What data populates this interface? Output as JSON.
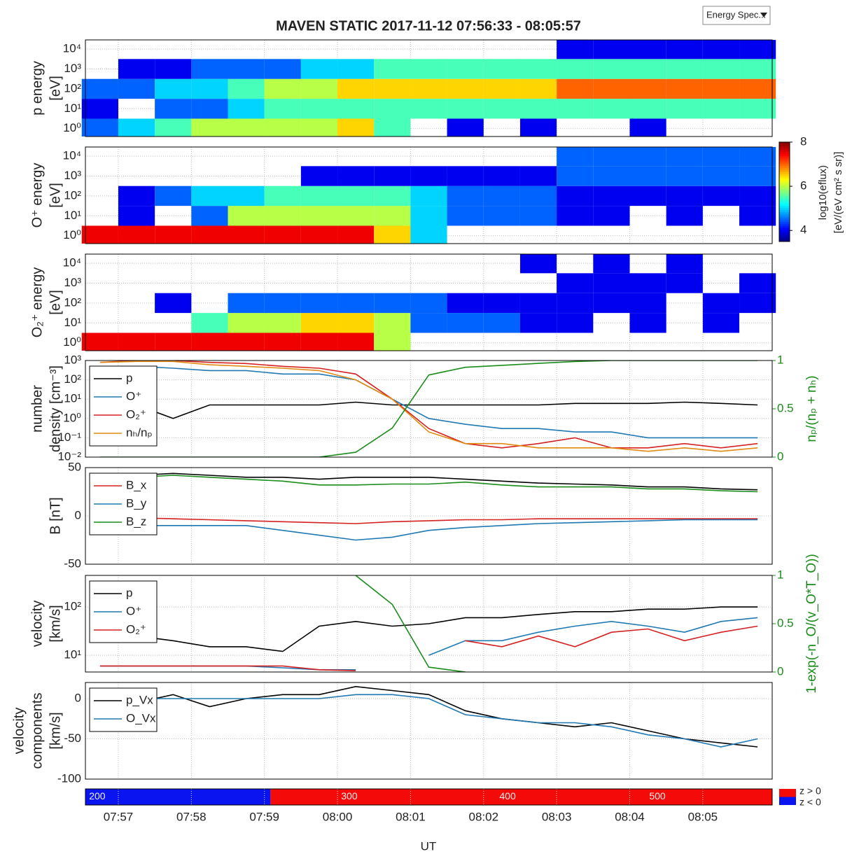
{
  "title": "MAVEN STATIC 2017-11-12 07:56:33 - 08:05:57",
  "controls": {
    "dropdown": "Energy Spec..."
  },
  "colorbar": {
    "clim": [
      3.5,
      8
    ],
    "ticks": [
      4,
      6,
      8
    ],
    "label": [
      "log10(eflux)",
      "[eV/(eV cm² s sr)]"
    ]
  },
  "chart_data": [
    {
      "type": "heatmap",
      "ylabel": [
        "p energy",
        "[eV]"
      ],
      "xlim": [
        "07:56:33",
        "08:05:57"
      ],
      "ylog": true,
      "ylim": [
        0.4,
        29000
      ],
      "yticks": [
        {
          "value": 1,
          "label": "10⁰"
        },
        {
          "value": 10,
          "label": "10¹"
        },
        {
          "value": 100,
          "label": "10²"
        },
        {
          "value": 1000,
          "label": "10³"
        },
        {
          "value": 10000,
          "label": "10⁴"
        }
      ],
      "x": [
        "07:56:45",
        "07:57:15",
        "07:57:45",
        "07:58:15",
        "07:58:45",
        "07:59:15",
        "07:59:45",
        "08:00:15",
        "08:00:45",
        "08:01:15",
        "08:01:45",
        "08:02:15",
        "08:02:45",
        "08:03:15",
        "08:03:45",
        "08:04:15",
        "08:04:45",
        "08:05:15",
        "08:05:45"
      ],
      "energies": [
        1,
        10,
        100,
        1000,
        10000
      ],
      "z": [
        [
          4.5,
          5,
          5.5,
          6,
          6,
          6,
          6,
          6.5,
          5.5,
          null,
          4,
          null,
          4,
          null,
          null,
          4,
          null,
          null,
          null
        ],
        [
          4,
          null,
          4.5,
          4.5,
          5,
          5.5,
          5.5,
          5.5,
          5.5,
          5.5,
          5.5,
          5.5,
          5.5,
          5.5,
          5.5,
          5.5,
          5.5,
          5.5,
          5.5
        ],
        [
          4.5,
          4.5,
          5,
          5,
          5.5,
          6,
          6,
          6.5,
          6.5,
          6.5,
          6.5,
          6.5,
          6.5,
          7,
          7,
          7,
          7,
          7,
          7
        ],
        [
          null,
          4,
          4,
          4.5,
          4.5,
          4.5,
          5,
          5,
          5.5,
          5.5,
          5.5,
          5.5,
          5.5,
          5.5,
          5.5,
          5.5,
          5.5,
          5.5,
          5.5
        ],
        [
          null,
          null,
          null,
          null,
          null,
          null,
          null,
          null,
          null,
          null,
          null,
          null,
          null,
          4,
          4,
          4,
          4,
          4,
          4
        ]
      ]
    },
    {
      "type": "heatmap",
      "ylabel": [
        "O⁺ energy",
        "[eV]"
      ],
      "xlim": [
        "07:56:33",
        "08:05:57"
      ],
      "ylog": true,
      "ylim": [
        0.4,
        29000
      ],
      "yticks": [
        {
          "value": 1,
          "label": "10⁰"
        },
        {
          "value": 10,
          "label": "10¹"
        },
        {
          "value": 100,
          "label": "10²"
        },
        {
          "value": 1000,
          "label": "10³"
        },
        {
          "value": 10000,
          "label": "10⁴"
        }
      ],
      "x": [
        "07:56:45",
        "07:57:15",
        "07:57:45",
        "07:58:15",
        "07:58:45",
        "07:59:15",
        "07:59:45",
        "08:00:15",
        "08:00:45",
        "08:01:15",
        "08:01:45",
        "08:02:15",
        "08:02:45",
        "08:03:15",
        "08:03:45",
        "08:04:15",
        "08:04:45",
        "08:05:15",
        "08:05:45"
      ],
      "energies": [
        1,
        10,
        100,
        1000,
        10000
      ],
      "z": [
        [
          7.5,
          7.5,
          7.5,
          7.5,
          7.5,
          7.5,
          7.5,
          7.5,
          6.5,
          5,
          null,
          null,
          null,
          null,
          null,
          null,
          null,
          null,
          null
        ],
        [
          null,
          4,
          null,
          4.5,
          6,
          6,
          6,
          6,
          6,
          5,
          4.5,
          4.5,
          4.5,
          4,
          4,
          null,
          4,
          null,
          4
        ],
        [
          null,
          4,
          4.5,
          5,
          5,
          5.5,
          5.5,
          5.5,
          5.5,
          5,
          4.5,
          4.5,
          4.5,
          4,
          4,
          4,
          4,
          4,
          4
        ],
        [
          null,
          null,
          null,
          null,
          null,
          null,
          4,
          4,
          4,
          4,
          4,
          4,
          4,
          4.5,
          4.5,
          4.5,
          4.5,
          4.5,
          4.5
        ],
        [
          null,
          null,
          null,
          null,
          null,
          null,
          null,
          null,
          null,
          null,
          null,
          null,
          null,
          4.5,
          4.5,
          4.5,
          4.5,
          4.5,
          4.5
        ]
      ]
    },
    {
      "type": "heatmap",
      "ylabel": [
        "O₂⁺ energy",
        "[eV]"
      ],
      "xlim": [
        "07:56:33",
        "08:05:57"
      ],
      "ylog": true,
      "ylim": [
        0.4,
        29000
      ],
      "yticks": [
        {
          "value": 1,
          "label": "10⁰"
        },
        {
          "value": 10,
          "label": "10¹"
        },
        {
          "value": 100,
          "label": "10²"
        },
        {
          "value": 1000,
          "label": "10³"
        },
        {
          "value": 10000,
          "label": "10⁴"
        }
      ],
      "x": [
        "07:56:45",
        "07:57:15",
        "07:57:45",
        "07:58:15",
        "07:58:45",
        "07:59:15",
        "07:59:45",
        "08:00:15",
        "08:00:45",
        "08:01:15",
        "08:01:45",
        "08:02:15",
        "08:02:45",
        "08:03:15",
        "08:03:45",
        "08:04:15",
        "08:04:45",
        "08:05:15",
        "08:05:45"
      ],
      "energies": [
        1,
        10,
        100,
        1000,
        10000
      ],
      "z": [
        [
          7.5,
          7.5,
          7.5,
          7.5,
          7.5,
          7.5,
          7.5,
          7.5,
          6,
          null,
          null,
          null,
          null,
          null,
          null,
          null,
          null,
          null,
          null
        ],
        [
          null,
          null,
          null,
          5.5,
          6,
          6,
          6.5,
          6.5,
          6,
          4.5,
          4.5,
          4.5,
          4,
          4,
          null,
          4,
          null,
          4,
          null
        ],
        [
          null,
          null,
          4,
          null,
          4.5,
          4.5,
          4.5,
          4.5,
          4.5,
          4.5,
          4,
          4,
          4,
          4,
          4,
          4,
          null,
          4,
          4
        ],
        [
          null,
          null,
          null,
          null,
          null,
          null,
          null,
          null,
          null,
          null,
          null,
          null,
          null,
          4,
          4,
          4,
          4,
          null,
          4
        ],
        [
          null,
          null,
          null,
          null,
          null,
          null,
          null,
          null,
          null,
          null,
          null,
          null,
          4,
          null,
          4,
          null,
          4,
          null,
          null
        ]
      ]
    },
    {
      "type": "line",
      "ylabel": [
        "number",
        "density [cm⁻³]"
      ],
      "y2label": "nₚ/(nₚ + nₕ)",
      "xlim": [
        "07:56:33",
        "08:05:57"
      ],
      "ylog": true,
      "ylim": [
        0.01,
        1000
      ],
      "yticks": [
        {
          "value": 0.01,
          "label": "10⁻²"
        },
        {
          "value": 0.1,
          "label": "10⁻¹"
        },
        {
          "value": 1,
          "label": "10⁰"
        },
        {
          "value": 10,
          "label": "10¹"
        },
        {
          "value": 100,
          "label": "10²"
        },
        {
          "value": 1000,
          "label": "10³"
        }
      ],
      "y2lim": [
        0,
        1
      ],
      "y2ticks": [
        0,
        0.5,
        1
      ],
      "y2color": "#1a8c1a",
      "x": [
        "07:56:45",
        "07:57:15",
        "07:57:45",
        "07:58:15",
        "07:58:45",
        "07:59:15",
        "07:59:45",
        "08:00:15",
        "08:00:45",
        "08:01:15",
        "08:01:45",
        "08:02:15",
        "08:02:45",
        "08:03:15",
        "08:03:45",
        "08:04:15",
        "08:04:45",
        "08:05:15",
        "08:05:45"
      ],
      "series": [
        {
          "name": "p",
          "color": "#000000",
          "values": [
            3,
            5,
            1,
            5,
            5,
            5,
            5,
            7,
            5,
            5,
            5,
            5,
            5,
            6,
            6,
            6,
            7,
            6,
            5
          ]
        },
        {
          "name": "O⁺",
          "color": "#1f78b4",
          "values": [
            500,
            500,
            400,
            300,
            300,
            200,
            200,
            100,
            10,
            1,
            0.5,
            0.3,
            0.3,
            0.2,
            0.2,
            0.1,
            0.1,
            0.1,
            0.1
          ]
        },
        {
          "name": "O₂⁺",
          "color": "#d62020",
          "values": [
            800,
            1000,
            1000,
            800,
            700,
            500,
            400,
            200,
            10,
            0.3,
            0.05,
            0.03,
            0.05,
            0.1,
            0.03,
            0.03,
            0.05,
            0.03,
            0.05
          ]
        },
        {
          "name": "nₕ/nₚ",
          "color": "#e08a10",
          "values": [
            800,
            900,
            900,
            600,
            500,
            400,
            300,
            100,
            10,
            0.2,
            0.05,
            0.05,
            0.03,
            0.03,
            0.03,
            0.02,
            0.03,
            0.02,
            0.03
          ]
        },
        {
          "color": "#1a8c1a",
          "axis": "y2",
          "values": [
            0,
            0,
            0,
            0,
            0,
            0,
            0,
            0.05,
            0.3,
            0.85,
            0.93,
            0.95,
            0.97,
            0.99,
            1,
            1,
            1,
            1,
            1
          ]
        }
      ]
    },
    {
      "type": "line",
      "ylabel": [
        "B [nT]"
      ],
      "xlim": [
        "07:56:33",
        "08:05:57"
      ],
      "ylim": [
        -50,
        50
      ],
      "yticks": [
        -50,
        0,
        50
      ],
      "x": [
        "07:56:45",
        "07:57:15",
        "07:57:45",
        "07:58:15",
        "07:58:45",
        "07:59:15",
        "07:59:45",
        "08:00:15",
        "08:00:45",
        "08:01:15",
        "08:01:45",
        "08:02:15",
        "08:02:45",
        "08:03:15",
        "08:03:45",
        "08:04:15",
        "08:04:45",
        "08:05:15",
        "08:05:45"
      ],
      "series": [
        {
          "color": "#000000",
          "values": [
            40,
            42,
            44,
            42,
            40,
            40,
            38,
            40,
            40,
            40,
            38,
            36,
            34,
            33,
            32,
            30,
            30,
            28,
            27
          ]
        },
        {
          "name": "B_x",
          "color": "#d62020",
          "values": [
            -1,
            -2,
            -3,
            -4,
            -5,
            -6,
            -7,
            -8,
            -6,
            -5,
            -4,
            -4,
            -3,
            -3,
            -3,
            -3,
            -3,
            -3,
            -3
          ]
        },
        {
          "name": "B_y",
          "color": "#1f78b4",
          "values": [
            -8,
            -10,
            -10,
            -10,
            -10,
            -15,
            -20,
            -25,
            -22,
            -15,
            -12,
            -10,
            -8,
            -7,
            -6,
            -5,
            -4,
            -4,
            -4
          ]
        },
        {
          "name": "B_z",
          "color": "#1a8c1a",
          "values": [
            38,
            40,
            42,
            40,
            38,
            36,
            32,
            32,
            33,
            33,
            35,
            32,
            30,
            30,
            30,
            28,
            28,
            26,
            25
          ]
        }
      ]
    },
    {
      "type": "line",
      "ylabel": [
        "velocity",
        "[km/s]"
      ],
      "y2label": "1-exp(-n_O/(v_O*T_O))",
      "xlim": [
        "07:56:33",
        "08:05:57"
      ],
      "ylog": true,
      "ylim": [
        4.5,
        450
      ],
      "yticks": [
        {
          "value": 10,
          "label": "10¹"
        },
        {
          "value": 100,
          "label": "10²"
        }
      ],
      "y2lim": [
        0,
        1
      ],
      "y2ticks": [
        0,
        0.5,
        1
      ],
      "y2color": "#1a8c1a",
      "x": [
        "07:56:45",
        "07:57:15",
        "07:57:45",
        "07:58:15",
        "07:58:45",
        "07:59:15",
        "07:59:45",
        "08:00:15",
        "08:00:45",
        "08:01:15",
        "08:01:45",
        "08:02:15",
        "08:02:45",
        "08:03:15",
        "08:03:45",
        "08:04:15",
        "08:04:45",
        "08:05:15",
        "08:05:45"
      ],
      "series": [
        {
          "name": "p",
          "color": "#000000",
          "values": [
            30,
            25,
            20,
            15,
            15,
            12,
            40,
            50,
            40,
            45,
            60,
            60,
            70,
            80,
            80,
            90,
            90,
            100,
            100
          ]
        },
        {
          "name": "O⁺",
          "color": "#1f78b4",
          "values": [
            6,
            6,
            6,
            6,
            6,
            5.5,
            5,
            5,
            null,
            10,
            20,
            20,
            30,
            40,
            50,
            40,
            30,
            50,
            60
          ]
        },
        {
          "name": "O₂⁺",
          "color": "#d62020",
          "values": [
            6,
            6,
            6,
            6,
            6,
            6,
            5,
            4.8,
            null,
            null,
            20,
            15,
            25,
            15,
            30,
            35,
            20,
            30,
            40
          ]
        },
        {
          "color": "#1a8c1a",
          "axis": "y2",
          "values": [
            null,
            null,
            null,
            null,
            null,
            null,
            null,
            1,
            0.7,
            0.05,
            0,
            null,
            null,
            null,
            null,
            null,
            null,
            null,
            null
          ]
        }
      ]
    },
    {
      "type": "line",
      "ylabel": [
        "velocity",
        "components",
        "[km/s]"
      ],
      "xlim": [
        "07:56:33",
        "08:05:57"
      ],
      "ylim": [
        -100,
        20
      ],
      "yticks": [
        -100,
        -50,
        0
      ],
      "x": [
        "07:56:45",
        "07:57:15",
        "07:57:45",
        "07:58:15",
        "07:58:45",
        "07:59:15",
        "07:59:45",
        "08:00:15",
        "08:00:45",
        "08:01:15",
        "08:01:45",
        "08:02:15",
        "08:02:45",
        "08:03:15",
        "08:03:45",
        "08:04:15",
        "08:04:45",
        "08:05:15",
        "08:05:45"
      ],
      "series": [
        {
          "name": "p_Vx",
          "color": "#000000",
          "values": [
            0,
            -5,
            5,
            -10,
            0,
            5,
            5,
            15,
            10,
            5,
            -15,
            -25,
            -30,
            -35,
            -30,
            -40,
            -50,
            -55,
            -60
          ]
        },
        {
          "name": "O_Vx",
          "color": "#1f78b4",
          "values": [
            0,
            0,
            0,
            0,
            0,
            0,
            0,
            5,
            5,
            0,
            -20,
            -25,
            -30,
            -30,
            -35,
            -45,
            -50,
            -60,
            -50
          ]
        }
      ]
    },
    {
      "type": "strip",
      "xlim": [
        "07:56:33",
        "08:05:57"
      ],
      "xlabel": "UT",
      "xticks": [
        "07:57",
        "07:58",
        "07:59",
        "08:00",
        "08:01",
        "08:02",
        "08:03",
        "08:04",
        "08:05"
      ],
      "segments": [
        {
          "start": "07:56:33",
          "end": "07:59:05",
          "color": "#0a14f0"
        },
        {
          "start": "07:59:05",
          "end": "08:05:57",
          "color": "#f50a0a"
        }
      ],
      "labels": {
        "x": [
          "07:56:36",
          "08:00:03",
          "08:02:13",
          "08:04:16"
        ],
        "values": [
          200,
          300,
          400,
          500
        ]
      },
      "legend": [
        {
          "label": "z > 0",
          "color": "#f50a0a"
        },
        {
          "label": "z < 0",
          "color": "#0a14f0"
        }
      ]
    }
  ]
}
